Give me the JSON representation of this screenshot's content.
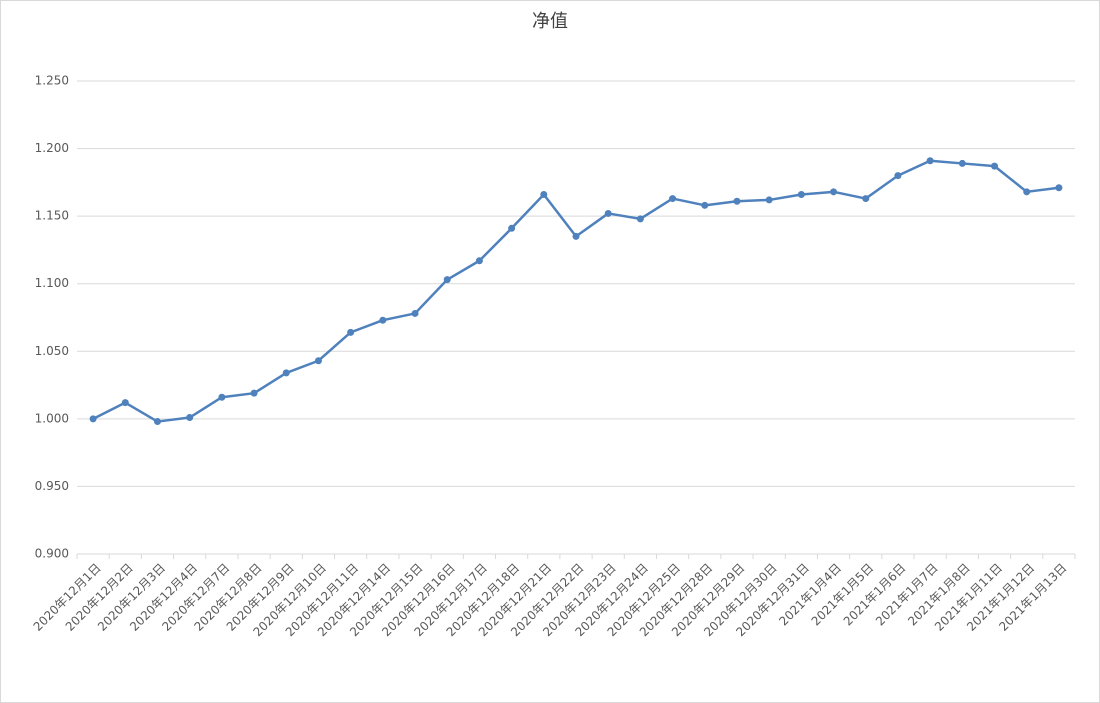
{
  "chart_data": {
    "type": "line",
    "title": "净值",
    "categories": [
      "2020年12月1日",
      "2020年12月2日",
      "2020年12月3日",
      "2020年12月4日",
      "2020年12月7日",
      "2020年12月8日",
      "2020年12月9日",
      "2020年12月10日",
      "2020年12月11日",
      "2020年12月14日",
      "2020年12月15日",
      "2020年12月16日",
      "2020年12月17日",
      "2020年12月18日",
      "2020年12月21日",
      "2020年12月22日",
      "2020年12月23日",
      "2020年12月24日",
      "2020年12月25日",
      "2020年12月28日",
      "2020年12月29日",
      "2020年12月30日",
      "2020年12月31日",
      "2021年1月4日",
      "2021年1月5日",
      "2021年1月6日",
      "2021年1月7日",
      "2021年1月8日",
      "2021年1月11日",
      "2021年1月12日",
      "2021年1月13日"
    ],
    "values": [
      1.0,
      1.012,
      0.998,
      1.001,
      1.016,
      1.019,
      1.034,
      1.043,
      1.064,
      1.073,
      1.078,
      1.103,
      1.117,
      1.141,
      1.166,
      1.135,
      1.152,
      1.148,
      1.163,
      1.158,
      1.161,
      1.162,
      1.166,
      1.168,
      1.163,
      1.18,
      1.191,
      1.189,
      1.187,
      1.168,
      1.171
    ],
    "color": "#4f81bd",
    "ylim": [
      0.9,
      1.25
    ],
    "yticks": [
      {
        "value": 0.9,
        "label": "0.900"
      },
      {
        "value": 0.95,
        "label": "0.950"
      },
      {
        "value": 1.0,
        "label": "1.000"
      },
      {
        "value": 1.05,
        "label": "1.050"
      },
      {
        "value": 1.1,
        "label": "1.100"
      },
      {
        "value": 1.15,
        "label": "1.150"
      },
      {
        "value": 1.2,
        "label": "1.200"
      },
      {
        "value": 1.25,
        "label": "1.250"
      }
    ],
    "grid": true
  }
}
